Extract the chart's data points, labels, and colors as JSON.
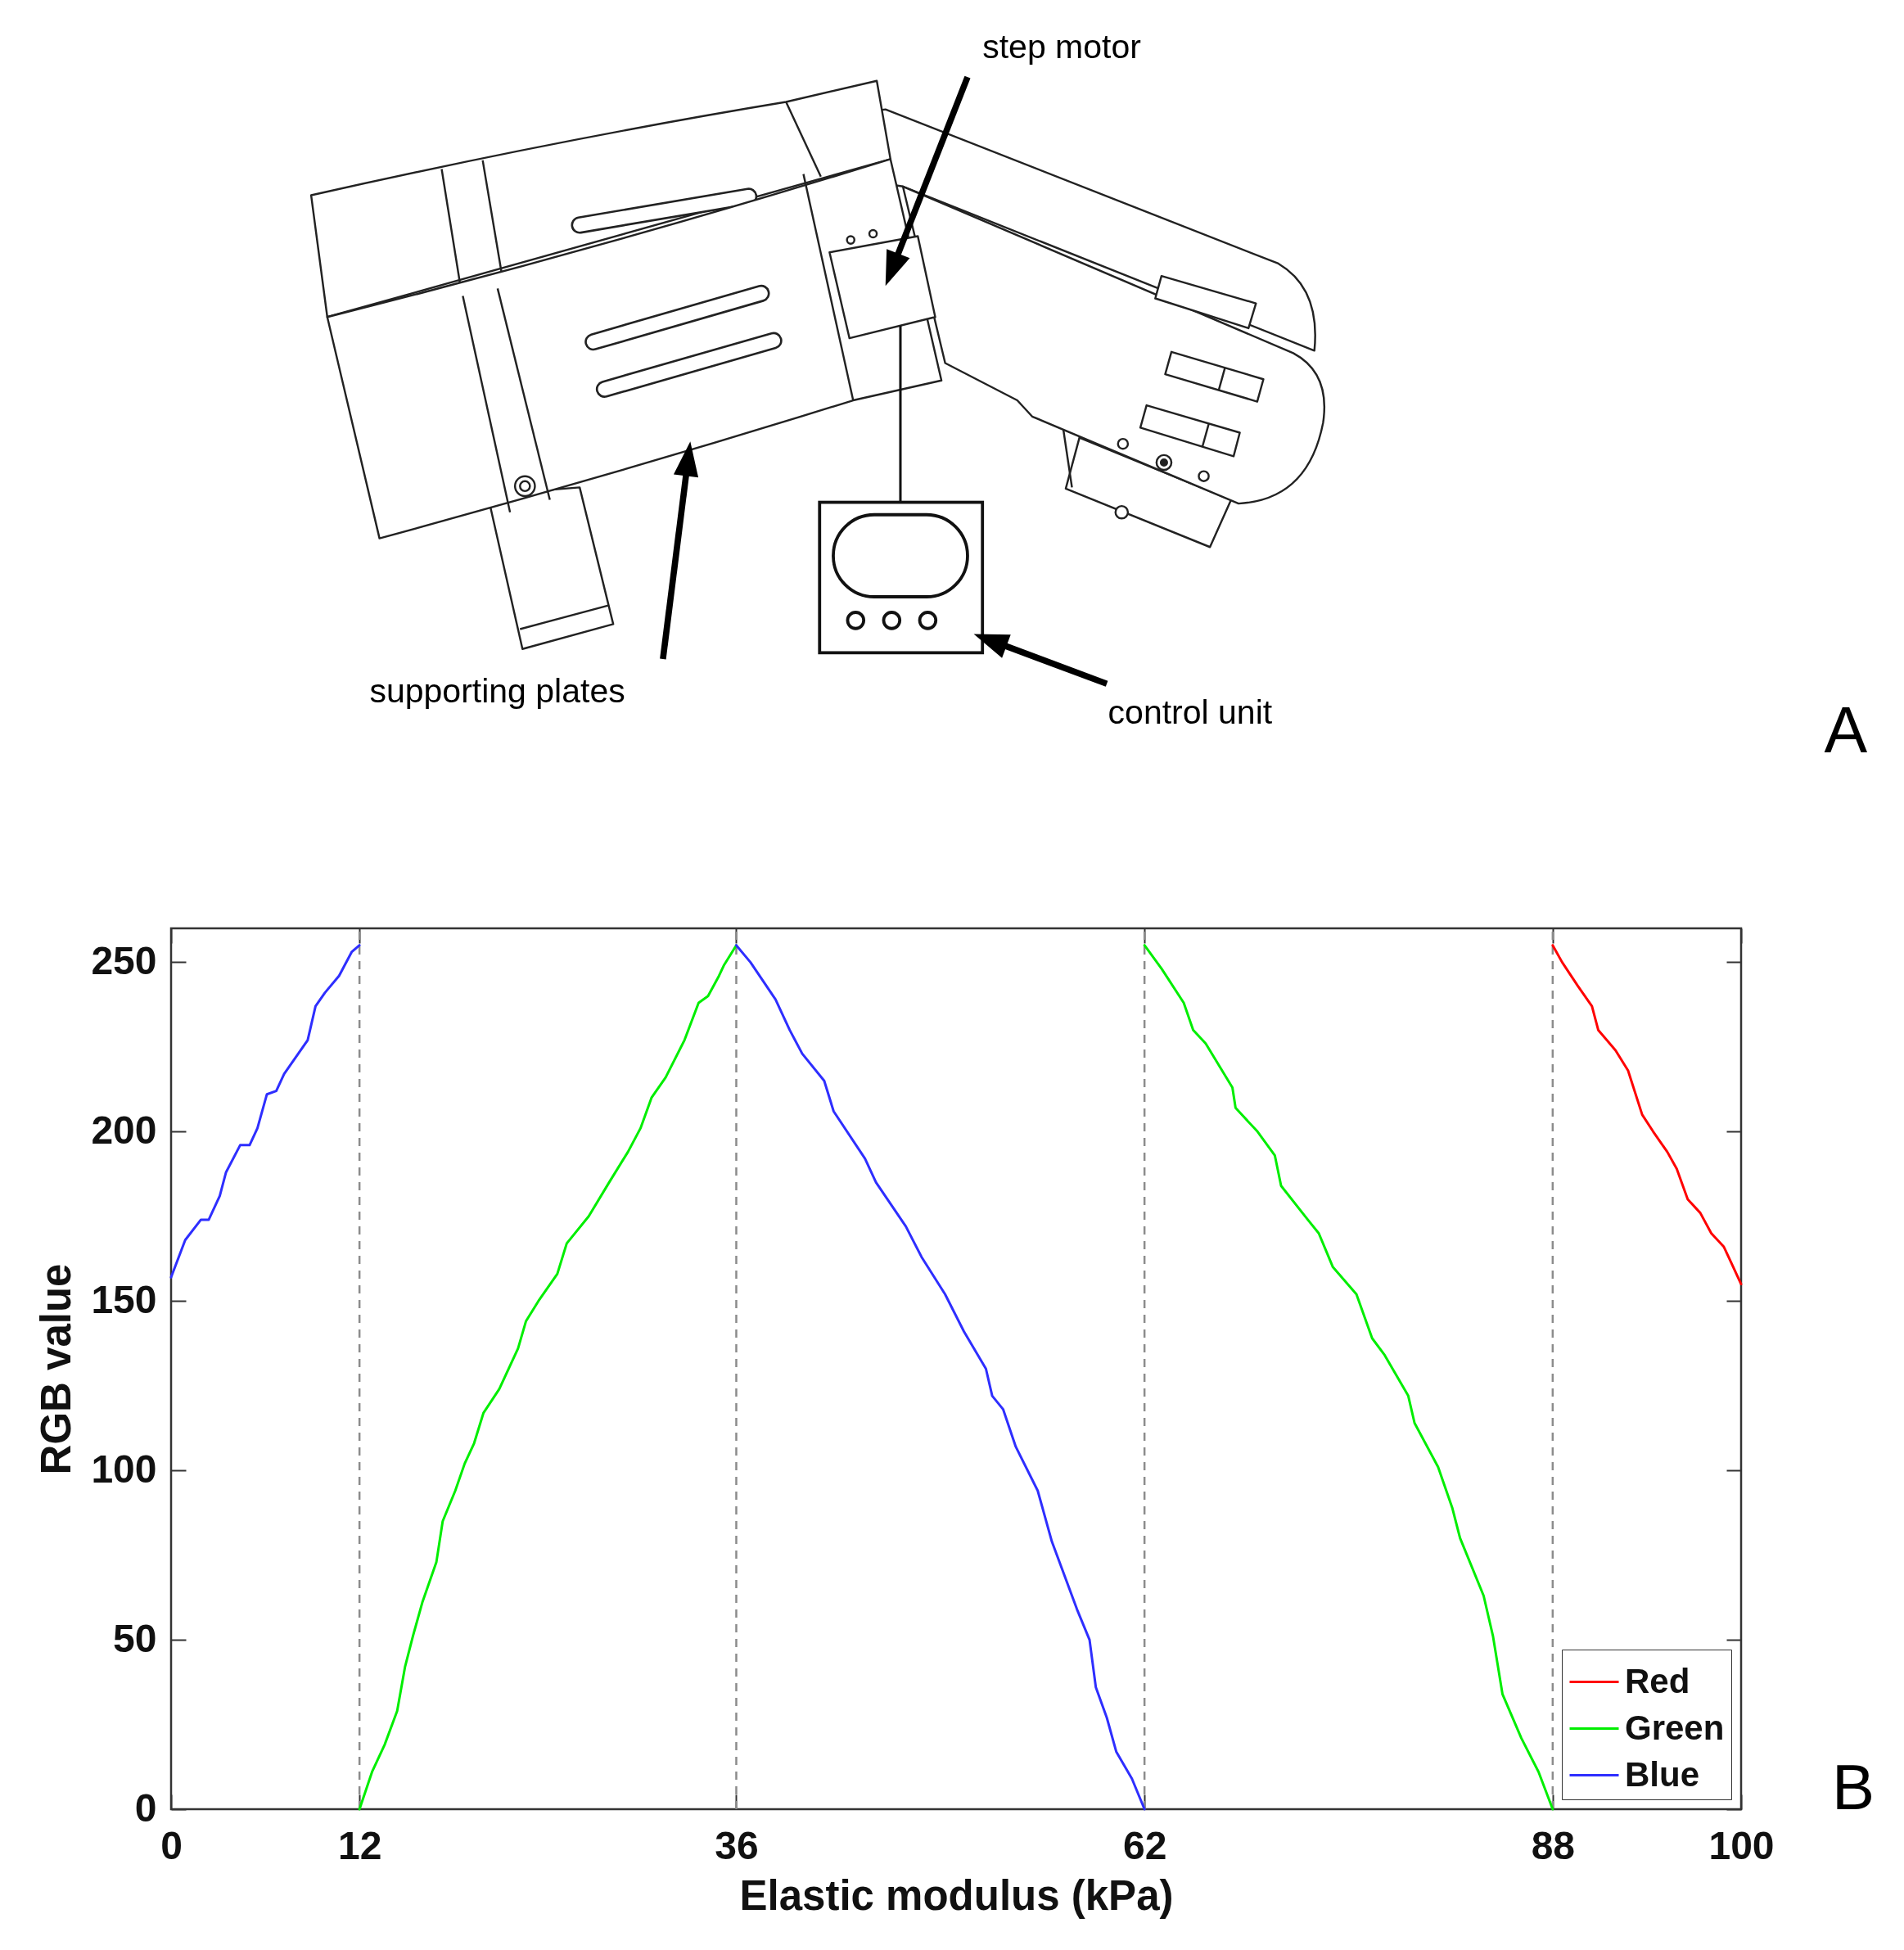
{
  "chart_data": [
    {
      "type": "other",
      "annotations": [
        "A",
        "step motor",
        "supporting plates",
        "control unit"
      ]
    },
    {
      "type": "line",
      "xlabel": "Elastic modulus (kPa)",
      "ylabel": "RGB value",
      "annotations": [
        "B"
      ],
      "xlim": [
        0,
        100
      ],
      "ylim": [
        0,
        260
      ],
      "xticks": [
        0,
        12,
        36,
        62,
        88,
        100
      ],
      "yticks": [
        0,
        50,
        100,
        150,
        200,
        250
      ],
      "legend": "bottom right",
      "ref_lines": [
        {
          "axis": "x",
          "value": 12,
          "color": "#8c8c8c",
          "line_style": "dashed"
        },
        {
          "axis": "x",
          "value": 36,
          "color": "#8c8c8c",
          "line_style": "dashed"
        },
        {
          "axis": "x",
          "value": 62,
          "color": "#8c8c8c",
          "line_style": "dashed"
        },
        {
          "axis": "x",
          "value": 88,
          "color": "#8c8c8c",
          "line_style": "dashed"
        }
      ],
      "series": [
        {
          "name": "Red",
          "color": "#ff0000",
          "x": [
            88,
            88.6,
            89.6,
            90.5,
            90.9,
            92,
            92.8,
            93.7,
            94.4,
            95.3,
            95.9,
            96.6,
            97.4,
            98.1,
            98.9,
            99.4,
            100
          ],
          "values": [
            255,
            250,
            243,
            237,
            230,
            224,
            218,
            205,
            200,
            194,
            189,
            180,
            176,
            170,
            166,
            161,
            155
          ]
        },
        {
          "name": "Green",
          "color": "#00ee00",
          "x": [
            12,
            12.8,
            13.6,
            14.4,
            14.9,
            15.4,
            16,
            16.9,
            17.3,
            18.1,
            18.7,
            19.3,
            19.9,
            20.9,
            22.1,
            22.6,
            23.4,
            24.6,
            25.2,
            26.6,
            27.9,
            29.1,
            29.9,
            30.6,
            31.5,
            32.7,
            33.6,
            34.2,
            34.9,
            35.2,
            36,
            49,
            62,
            63.1,
            64.5,
            65.1,
            65.9,
            67.6,
            67.8,
            69.2,
            70.3,
            70.7,
            72.4,
            73.1,
            74,
            75.5,
            76.5,
            77.3,
            78.8,
            79.2,
            80.7,
            81.6,
            82.1,
            83.6,
            84.2,
            84.8,
            86,
            87.1,
            88
          ],
          "values": [
            0,
            11,
            19,
            29,
            42,
            51,
            61,
            73,
            85,
            94,
            102,
            108,
            117,
            124,
            136,
            144,
            150,
            158,
            167,
            175,
            185,
            194,
            201,
            210,
            216,
            227,
            238,
            240,
            246,
            249,
            255,
            null,
            255,
            248,
            238,
            230,
            226,
            213,
            207,
            200,
            193,
            184,
            174,
            170,
            160,
            152,
            139,
            134,
            122,
            114,
            101,
            89,
            80,
            63,
            51,
            34,
            21,
            11,
            0
          ]
        },
        {
          "name": "Blue",
          "color": "#2e2eff",
          "x": [
            0,
            0.9,
            1.9,
            2.4,
            3.1,
            3.5,
            4.4,
            5,
            5.5,
            6.1,
            6.7,
            7.2,
            8.7,
            9.2,
            9.8,
            10.7,
            11.5,
            12,
            24,
            36,
            36.9,
            38.5,
            39.4,
            40.2,
            41.6,
            42.2,
            44.2,
            44.9,
            46.8,
            47.8,
            49.3,
            50.5,
            51.9,
            52.3,
            53,
            53.8,
            55.2,
            56.1,
            57.7,
            58.5,
            58.9,
            59.6,
            60.2,
            61.2,
            62
          ],
          "values": [
            157,
            168,
            174,
            174,
            181,
            188,
            196,
            196,
            201,
            211,
            212,
            217,
            227,
            237,
            241,
            246,
            253,
            255,
            null,
            255,
            250,
            239,
            230,
            223,
            215,
            206,
            192,
            185,
            172,
            163,
            152,
            141,
            130,
            122,
            118,
            107,
            94,
            79,
            59,
            50,
            36,
            27,
            17,
            9,
            0
          ]
        }
      ]
    }
  ]
}
